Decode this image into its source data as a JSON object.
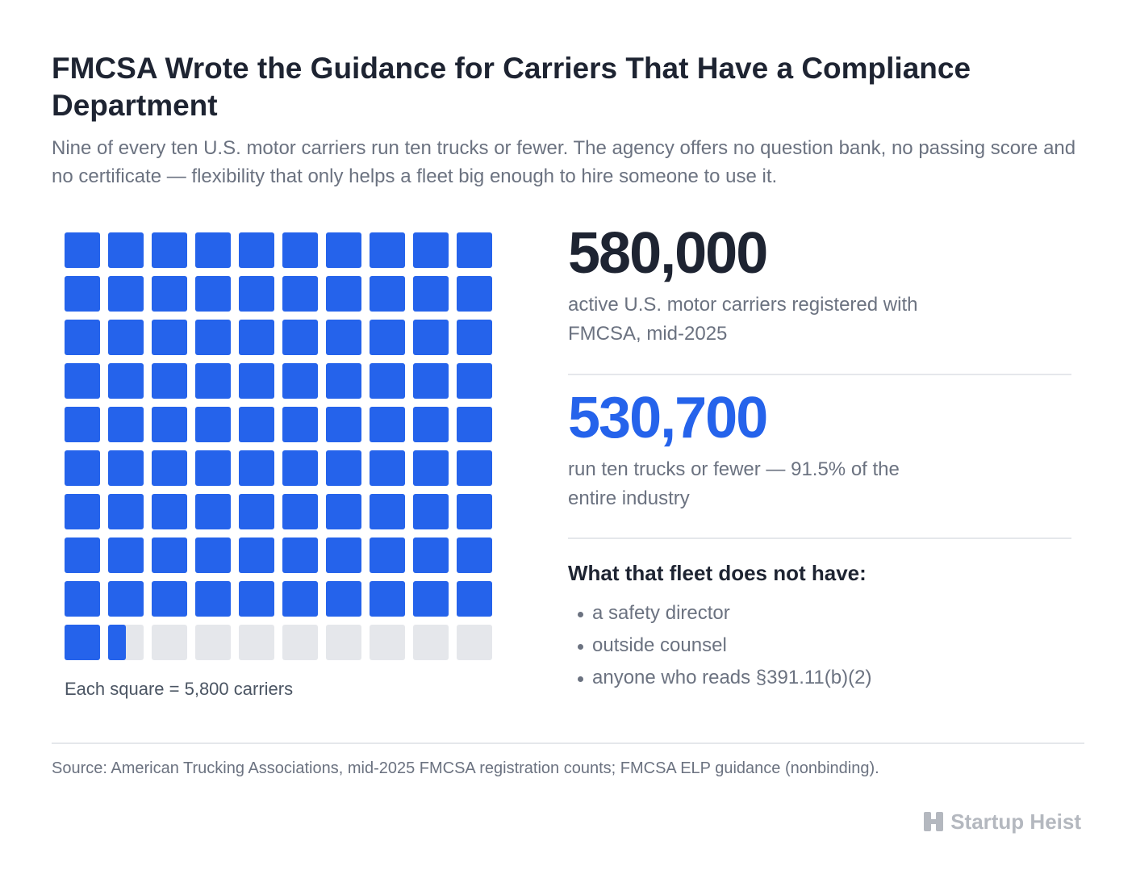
{
  "header": {
    "title": "FMCSA Wrote the Guidance for Carriers That Have a Compliance Department",
    "subtitle": "Nine of every ten U.S. motor carriers run ten trucks or fewer. The agency offers no question bank, no passing score and no certificate — flexibility that only helps a fleet big enough to hire someone to use it."
  },
  "stats": {
    "total_number": "580,000",
    "total_desc": "active U.S. motor carriers registered with FMCSA, mid-2025",
    "small_number": "530,700",
    "small_desc": "run ten trucks or fewer — 91.5% of the entire industry"
  },
  "list": {
    "title": "What that fleet does not have:",
    "items": [
      "a safety director",
      "outside counsel",
      "anyone who reads §391.11(b)(2)"
    ]
  },
  "colors": {
    "filled": "#2563eb",
    "empty": "#e5e7eb",
    "accent": "#2563eb",
    "text_dark": "#1e2432",
    "text_muted": "#6b7280"
  },
  "chart_data": {
    "type": "waffle",
    "rows": 10,
    "cols": 10,
    "total_squares": 100,
    "filled_squares": 91.5,
    "unit_value": 5800,
    "caption": "Each square = 5,800 carriers"
  },
  "footer": {
    "source": "Source: American Trucking Associations, mid-2025 FMCSA registration counts; FMCSA ELP guidance (nonbinding).",
    "brand": "Startup Heist"
  }
}
